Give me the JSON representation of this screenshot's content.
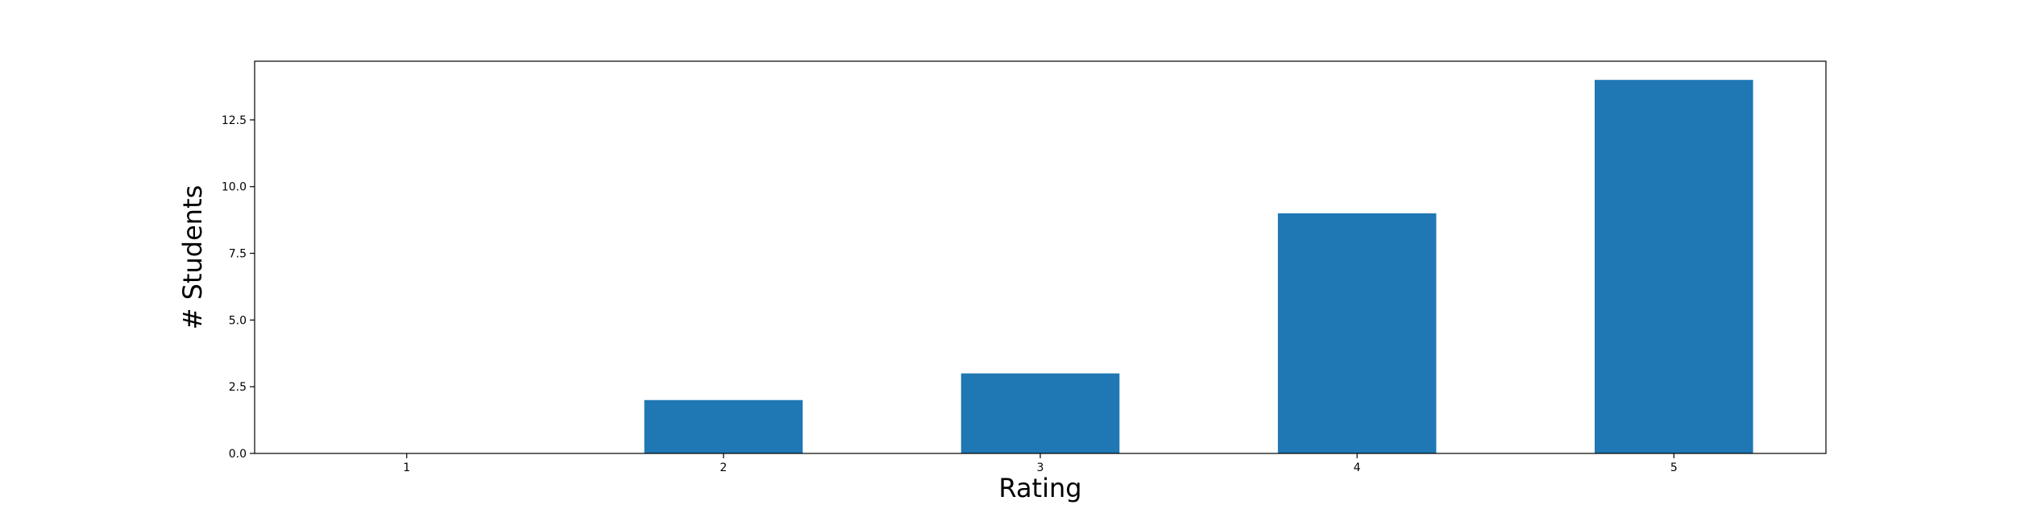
{
  "chart_data": {
    "type": "bar",
    "categories": [
      "1",
      "2",
      "3",
      "4",
      "5"
    ],
    "values": [
      0,
      2,
      3,
      9,
      14
    ],
    "title": "",
    "xlabel": "Rating",
    "ylabel": "# Students",
    "ylim": [
      0,
      14.7
    ],
    "yticks": [
      0,
      2.5,
      5,
      7.5,
      10,
      12.5
    ],
    "ytick_labels": [
      "0.0",
      "2.5",
      "5.0",
      "7.5",
      "10.0",
      "12.5"
    ],
    "xlim": [
      0.52,
      5.48
    ],
    "bar_color": "#1f77b4",
    "grid": false,
    "legend": "none"
  }
}
